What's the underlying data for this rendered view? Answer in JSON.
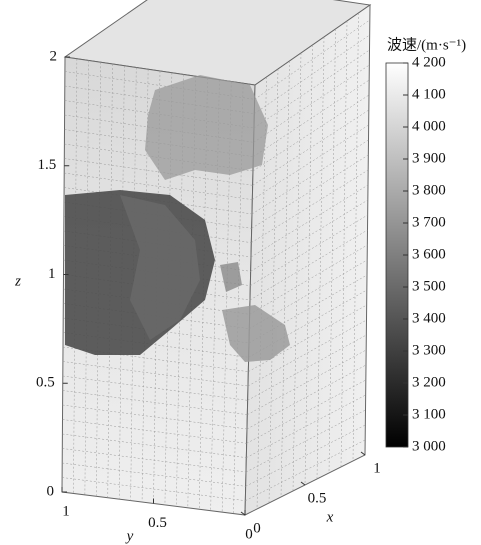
{
  "chart_data": {
    "type": "volume",
    "xlabel": "x",
    "ylabel": "y",
    "zlabel": "z",
    "xlim": [
      0,
      1
    ],
    "xticks": [
      0,
      0.5,
      1
    ],
    "ylim": [
      1,
      0
    ],
    "yticks": [
      1,
      0.5,
      0
    ],
    "zlim": [
      0,
      2
    ],
    "zticks": [
      0,
      0.5,
      1,
      1.5,
      2
    ],
    "colorbar": {
      "title": "波速/(m·s⁻¹)",
      "clim": [
        3000,
        4200
      ],
      "colormap": [
        "#000000",
        "#ffffff"
      ],
      "ticks": [
        {
          "value": 4200,
          "label": "4 200"
        },
        {
          "value": 4100,
          "label": "4 100"
        },
        {
          "value": 4000,
          "label": "4 000"
        },
        {
          "value": 3900,
          "label": "3 900"
        },
        {
          "value": 3800,
          "label": "3 800"
        },
        {
          "value": 3700,
          "label": "3 700"
        },
        {
          "value": 3600,
          "label": "3 600"
        },
        {
          "value": 3500,
          "label": "3 500"
        },
        {
          "value": 3400,
          "label": "3 400"
        },
        {
          "value": 3300,
          "label": "3 300"
        },
        {
          "value": 3200,
          "label": "3 200"
        },
        {
          "value": 3100,
          "label": "3 100"
        },
        {
          "value": 3000,
          "label": "3 000"
        }
      ]
    }
  }
}
